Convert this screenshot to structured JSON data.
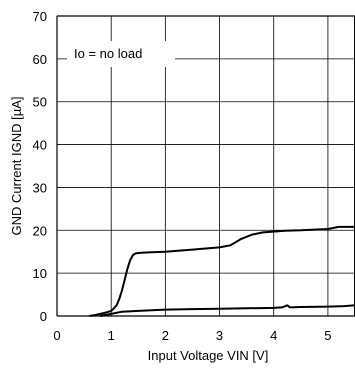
{
  "chart_data": {
    "type": "line",
    "xlabel": "Input Voltage VIN [V]",
    "ylabel": "GND Current IGND [µA]",
    "xlim": [
      0,
      5.5
    ],
    "ylim": [
      0,
      70
    ],
    "xticks": [
      "0",
      "1",
      "2",
      "3",
      "4",
      "5"
    ],
    "yticks": [
      "0",
      "10",
      "20",
      "30",
      "40",
      "50",
      "60",
      "70"
    ],
    "grid": true,
    "annotation": "Io = no load",
    "series": [
      {
        "x": [
          0.6,
          0.7,
          0.8,
          0.9,
          1.0,
          1.05,
          1.1,
          1.15,
          1.2,
          1.25,
          1.3,
          1.35,
          1.4,
          1.45,
          1.5,
          1.6,
          1.8,
          2.0,
          2.2,
          2.5,
          2.8,
          3.0,
          3.2,
          3.4,
          3.6,
          3.8,
          4.0,
          4.2,
          4.5,
          5.0,
          5.2,
          5.5
        ],
        "y": [
          0,
          0.2,
          0.5,
          0.8,
          1.2,
          1.8,
          2.5,
          4.0,
          6.0,
          8.5,
          11.0,
          13.0,
          14.2,
          14.6,
          14.7,
          14.8,
          14.9,
          15.0,
          15.2,
          15.5,
          15.8,
          16.0,
          16.5,
          18.0,
          19.0,
          19.5,
          19.7,
          19.9,
          20.0,
          20.3,
          20.8,
          20.8
        ]
      },
      {
        "x": [
          0.8,
          1.0,
          1.2,
          1.5,
          2.0,
          2.5,
          3.0,
          3.5,
          4.0,
          4.15,
          4.25,
          4.3,
          4.5,
          5.0,
          5.3,
          5.5
        ],
        "y": [
          0,
          0.5,
          1.0,
          1.2,
          1.5,
          1.6,
          1.7,
          1.8,
          1.9,
          2.0,
          2.5,
          2.0,
          2.1,
          2.2,
          2.3,
          2.5
        ]
      }
    ]
  }
}
